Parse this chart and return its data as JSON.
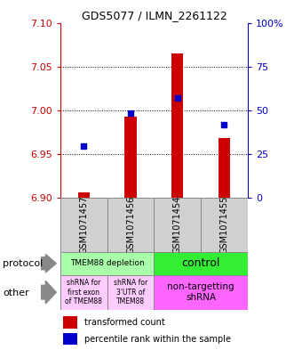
{
  "title": "GDS5077 / ILMN_2261122",
  "samples": [
    "GSM1071457",
    "GSM1071456",
    "GSM1071454",
    "GSM1071455"
  ],
  "bar_values": [
    6.906,
    6.993,
    7.065,
    6.968
  ],
  "bar_bottom": 6.9,
  "percentile_values": [
    6.959,
    6.997,
    7.014,
    6.984
  ],
  "ylim_left": [
    6.9,
    7.1
  ],
  "ylim_right": [
    0,
    100
  ],
  "yticks_left": [
    6.9,
    6.95,
    7.0,
    7.05,
    7.1
  ],
  "yticks_right": [
    0,
    25,
    50,
    75,
    100
  ],
  "ytick_labels_right": [
    "0",
    "25",
    "50",
    "75",
    "100%"
  ],
  "hlines": [
    6.95,
    7.0,
    7.05
  ],
  "bar_color": "#cc0000",
  "percentile_color": "#0000cc",
  "bar_width": 0.25,
  "protocol_labels": [
    "TMEM88 depletion",
    "control"
  ],
  "protocol_color_left": "#aaffaa",
  "protocol_color_right": "#33ee33",
  "other_labels_left": [
    "shRNA for\nfirst exon\nof TMEM88",
    "shRNA for\n3'UTR of\nTMEM88"
  ],
  "other_label_right": "non-targetting\nshRNA",
  "other_color_left": "#ffccff",
  "other_color_right": "#ff66ff",
  "sample_bg_color": "#d0d0d0",
  "left_axis_color": "#cc0000",
  "right_axis_color": "#0000cc"
}
